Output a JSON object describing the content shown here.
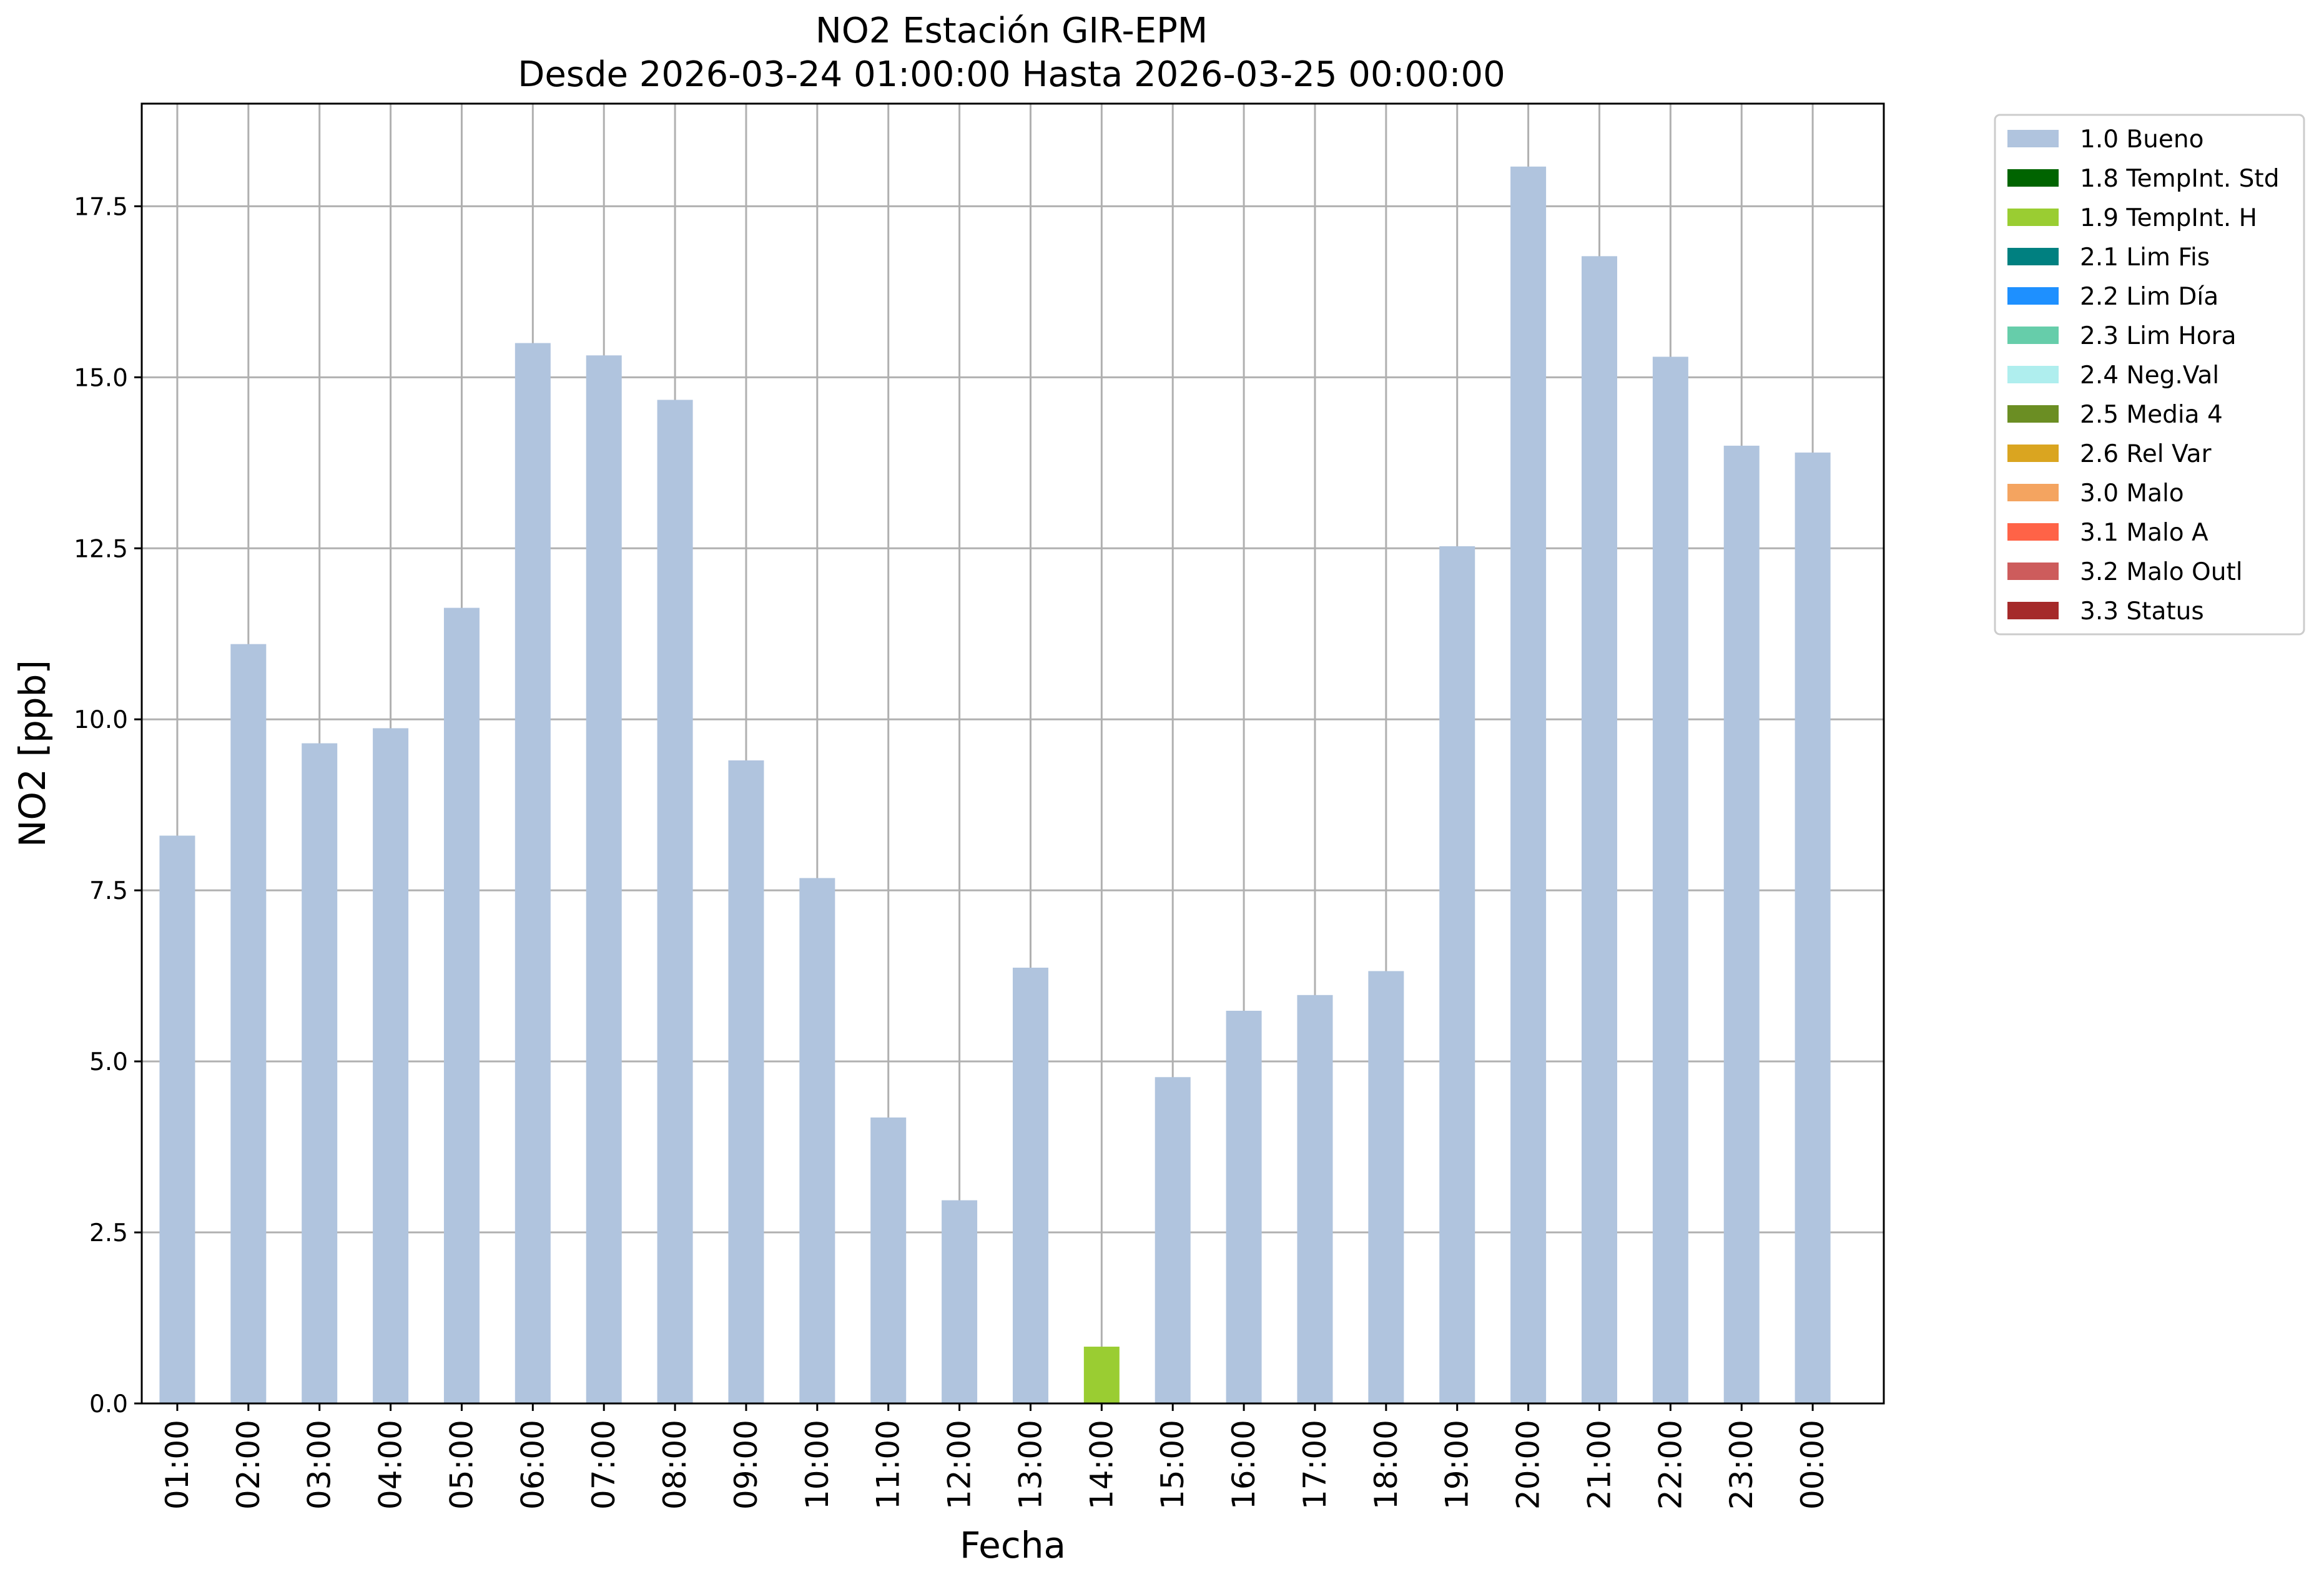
{
  "chart_data": {
    "type": "bar",
    "title": "NO2 Estación GIR-EPM",
    "subtitle": "Desde 2026-03-24 01:00:00 Hasta 2026-03-25 00:00:00",
    "xlabel": "Fecha",
    "ylabel": "NO2 [ppb]",
    "ylim": [
      0,
      19
    ],
    "yticks": [
      0.0,
      2.5,
      5.0,
      7.5,
      10.0,
      12.5,
      15.0,
      17.5
    ],
    "ytick_labels": [
      "0.0",
      "2.5",
      "5.0",
      "7.5",
      "10.0",
      "12.5",
      "15.0",
      "17.5"
    ],
    "grid": true,
    "legend_position": "outside-top-right",
    "categories": [
      "01:00",
      "02:00",
      "03:00",
      "04:00",
      "05:00",
      "06:00",
      "07:00",
      "08:00",
      "09:00",
      "10:00",
      "11:00",
      "12:00",
      "13:00",
      "14:00",
      "15:00",
      "16:00",
      "17:00",
      "18:00",
      "19:00",
      "20:00",
      "21:00",
      "22:00",
      "23:00",
      "00:00"
    ],
    "values": [
      8.3,
      11.1,
      9.65,
      9.87,
      11.63,
      15.5,
      15.32,
      14.67,
      9.4,
      7.68,
      4.18,
      2.97,
      6.37,
      0.83,
      4.77,
      5.74,
      5.97,
      6.32,
      12.53,
      18.08,
      16.77,
      15.3,
      14.0,
      13.9
    ],
    "flags": [
      "1.0 Bueno",
      "1.0 Bueno",
      "1.0 Bueno",
      "1.0 Bueno",
      "1.0 Bueno",
      "1.0 Bueno",
      "1.0 Bueno",
      "1.0 Bueno",
      "1.0 Bueno",
      "1.0 Bueno",
      "1.0 Bueno",
      "1.0 Bueno",
      "1.0 Bueno",
      "1.9 TempInt. H",
      "1.0 Bueno",
      "1.0 Bueno",
      "1.0 Bueno",
      "1.0 Bueno",
      "1.0 Bueno",
      "1.0 Bueno",
      "1.0 Bueno",
      "1.0 Bueno",
      "1.0 Bueno",
      "1.0 Bueno"
    ],
    "legend": [
      {
        "label": "1.0 Bueno",
        "color": "#b0c4de"
      },
      {
        "label": "1.8 TempInt. Std",
        "color": "#006400"
      },
      {
        "label": "1.9 TempInt. H",
        "color": "#9acd32"
      },
      {
        "label": "2.1 Lim Fis",
        "color": "#008080"
      },
      {
        "label": "2.2 Lim Día",
        "color": "#1e90ff"
      },
      {
        "label": "2.3 Lim Hora",
        "color": "#66cdaa"
      },
      {
        "label": "2.4 Neg.Val",
        "color": "#afeeee"
      },
      {
        "label": "2.5 Media 4",
        "color": "#6b8e23"
      },
      {
        "label": "2.6 Rel Var",
        "color": "#daa520"
      },
      {
        "label": "3.0 Malo",
        "color": "#f4a460"
      },
      {
        "label": "3.1 Malo A",
        "color": "#ff6347"
      },
      {
        "label": "3.2 Malo Outl",
        "color": "#cd5c5c"
      },
      {
        "label": "3.3 Status",
        "color": "#a52a2a"
      }
    ]
  }
}
